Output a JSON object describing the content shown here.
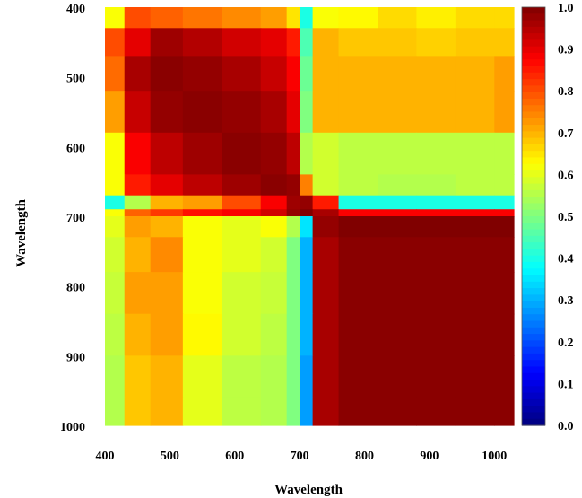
{
  "chart_data": {
    "type": "heatmap",
    "title": "",
    "xlabel": "Wavelength",
    "ylabel": "Wavelength",
    "xlim": [
      400,
      1030
    ],
    "ylim": [
      400,
      1000
    ],
    "x_ticks": [
      "400",
      "500",
      "600",
      "700",
      "800",
      "900",
      "1000"
    ],
    "y_ticks": [
      "400",
      "500",
      "600",
      "700",
      "800",
      "900",
      "1000"
    ],
    "colorbar": {
      "ticks": [
        "0.0",
        "0.1",
        "0.2",
        "0.3",
        "0.4",
        "0.5",
        "0.6",
        "0.7",
        "0.8",
        "0.9",
        "1.0"
      ],
      "range": [
        0,
        1
      ],
      "colormap": "jet"
    },
    "x_bands": [
      400,
      430,
      470,
      520,
      580,
      640,
      680,
      700,
      720,
      760,
      820,
      880,
      940,
      1000,
      1030
    ],
    "y_bands": [
      400,
      430,
      470,
      520,
      580,
      640,
      670,
      690,
      700,
      730,
      780,
      840,
      900,
      960,
      1000
    ],
    "values": [
      [
        0.62,
        0.8,
        0.78,
        0.76,
        0.74,
        0.72,
        0.65,
        0.4,
        0.62,
        0.63,
        0.66,
        0.64,
        0.66,
        0.66,
        0.66
      ],
      [
        0.8,
        0.9,
        0.97,
        0.95,
        0.92,
        0.9,
        0.85,
        0.45,
        0.7,
        0.68,
        0.68,
        0.67,
        0.68,
        0.68,
        0.68
      ],
      [
        0.77,
        0.96,
        0.99,
        0.98,
        0.96,
        0.93,
        0.88,
        0.48,
        0.7,
        0.7,
        0.7,
        0.7,
        0.7,
        0.72,
        0.72
      ],
      [
        0.72,
        0.93,
        0.98,
        0.99,
        0.98,
        0.96,
        0.9,
        0.5,
        0.7,
        0.7,
        0.7,
        0.7,
        0.7,
        0.72,
        0.72
      ],
      [
        0.62,
        0.88,
        0.94,
        0.97,
        0.99,
        0.98,
        0.94,
        0.55,
        0.58,
        0.56,
        0.56,
        0.56,
        0.56,
        0.56,
        0.56
      ],
      [
        0.62,
        0.85,
        0.9,
        0.94,
        0.97,
        0.99,
        0.98,
        0.75,
        0.58,
        0.56,
        0.55,
        0.55,
        0.56,
        0.56,
        0.56
      ],
      [
        0.4,
        0.55,
        0.7,
        0.72,
        0.8,
        0.88,
        0.97,
        0.98,
        0.85,
        0.4,
        0.4,
        0.4,
        0.4,
        0.4,
        0.4
      ],
      [
        0.62,
        0.78,
        0.82,
        0.86,
        0.88,
        0.92,
        0.98,
        1.0,
        0.96,
        0.88,
        0.88,
        0.88,
        0.88,
        0.88,
        0.88
      ],
      [
        0.6,
        0.72,
        0.7,
        0.62,
        0.6,
        0.62,
        0.55,
        0.35,
        0.98,
        1.0,
        1.0,
        1.0,
        1.0,
        1.0,
        1.0
      ],
      [
        0.58,
        0.7,
        0.74,
        0.62,
        0.6,
        0.58,
        0.5,
        0.3,
        0.96,
        0.99,
        0.99,
        0.99,
        0.99,
        0.99,
        0.99
      ],
      [
        0.57,
        0.72,
        0.72,
        0.62,
        0.58,
        0.57,
        0.5,
        0.3,
        0.96,
        0.99,
        0.99,
        0.99,
        0.99,
        0.99,
        0.99
      ],
      [
        0.56,
        0.7,
        0.72,
        0.63,
        0.58,
        0.56,
        0.5,
        0.3,
        0.96,
        0.99,
        0.99,
        0.99,
        0.99,
        0.99,
        0.99
      ],
      [
        0.55,
        0.68,
        0.7,
        0.6,
        0.56,
        0.55,
        0.5,
        0.28,
        0.96,
        0.99,
        0.99,
        0.99,
        0.99,
        0.99,
        0.99
      ],
      [
        0.55,
        0.68,
        0.7,
        0.6,
        0.56,
        0.55,
        0.5,
        0.28,
        0.96,
        0.99,
        0.99,
        0.99,
        0.99,
        0.99,
        0.99
      ]
    ]
  }
}
